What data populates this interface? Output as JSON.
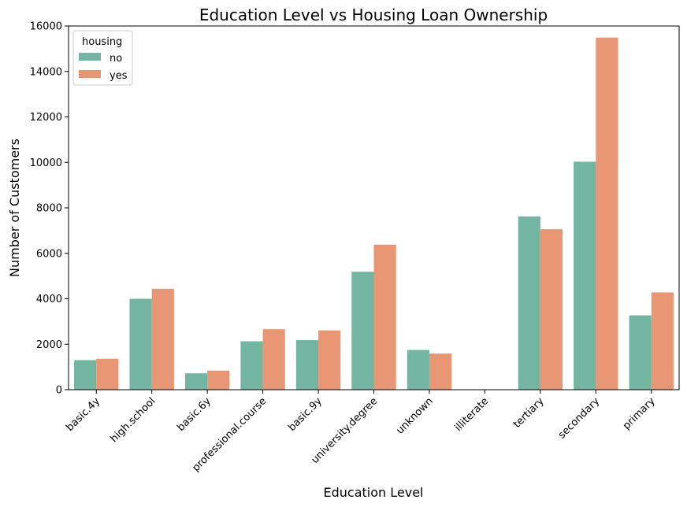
{
  "chart_data": {
    "type": "bar",
    "title": "Education Level vs Housing Loan Ownership",
    "xlabel": "Education Level",
    "ylabel": "Number of Customers",
    "categories": [
      "basic.4y",
      "high.school",
      "basic.6y",
      "professional.course",
      "basic.9y",
      "university.degree",
      "unknown",
      "illiterate",
      "tertiary",
      "secondary",
      "primary"
    ],
    "series": [
      {
        "name": "no",
        "color": "#72b6a1",
        "values": [
          1300,
          4000,
          720,
          2130,
          2180,
          5190,
          1750,
          8,
          7620,
          10030,
          3270
        ]
      },
      {
        "name": "yes",
        "color": "#e99675",
        "values": [
          1360,
          4440,
          840,
          2660,
          2610,
          6380,
          1590,
          10,
          7060,
          15490,
          4280
        ]
      }
    ],
    "ylim": [
      0,
      16000
    ],
    "yticks": [
      0,
      2000,
      4000,
      6000,
      8000,
      10000,
      12000,
      14000,
      16000
    ],
    "legend": {
      "title": "housing",
      "position": "top-left"
    },
    "grid": false
  }
}
